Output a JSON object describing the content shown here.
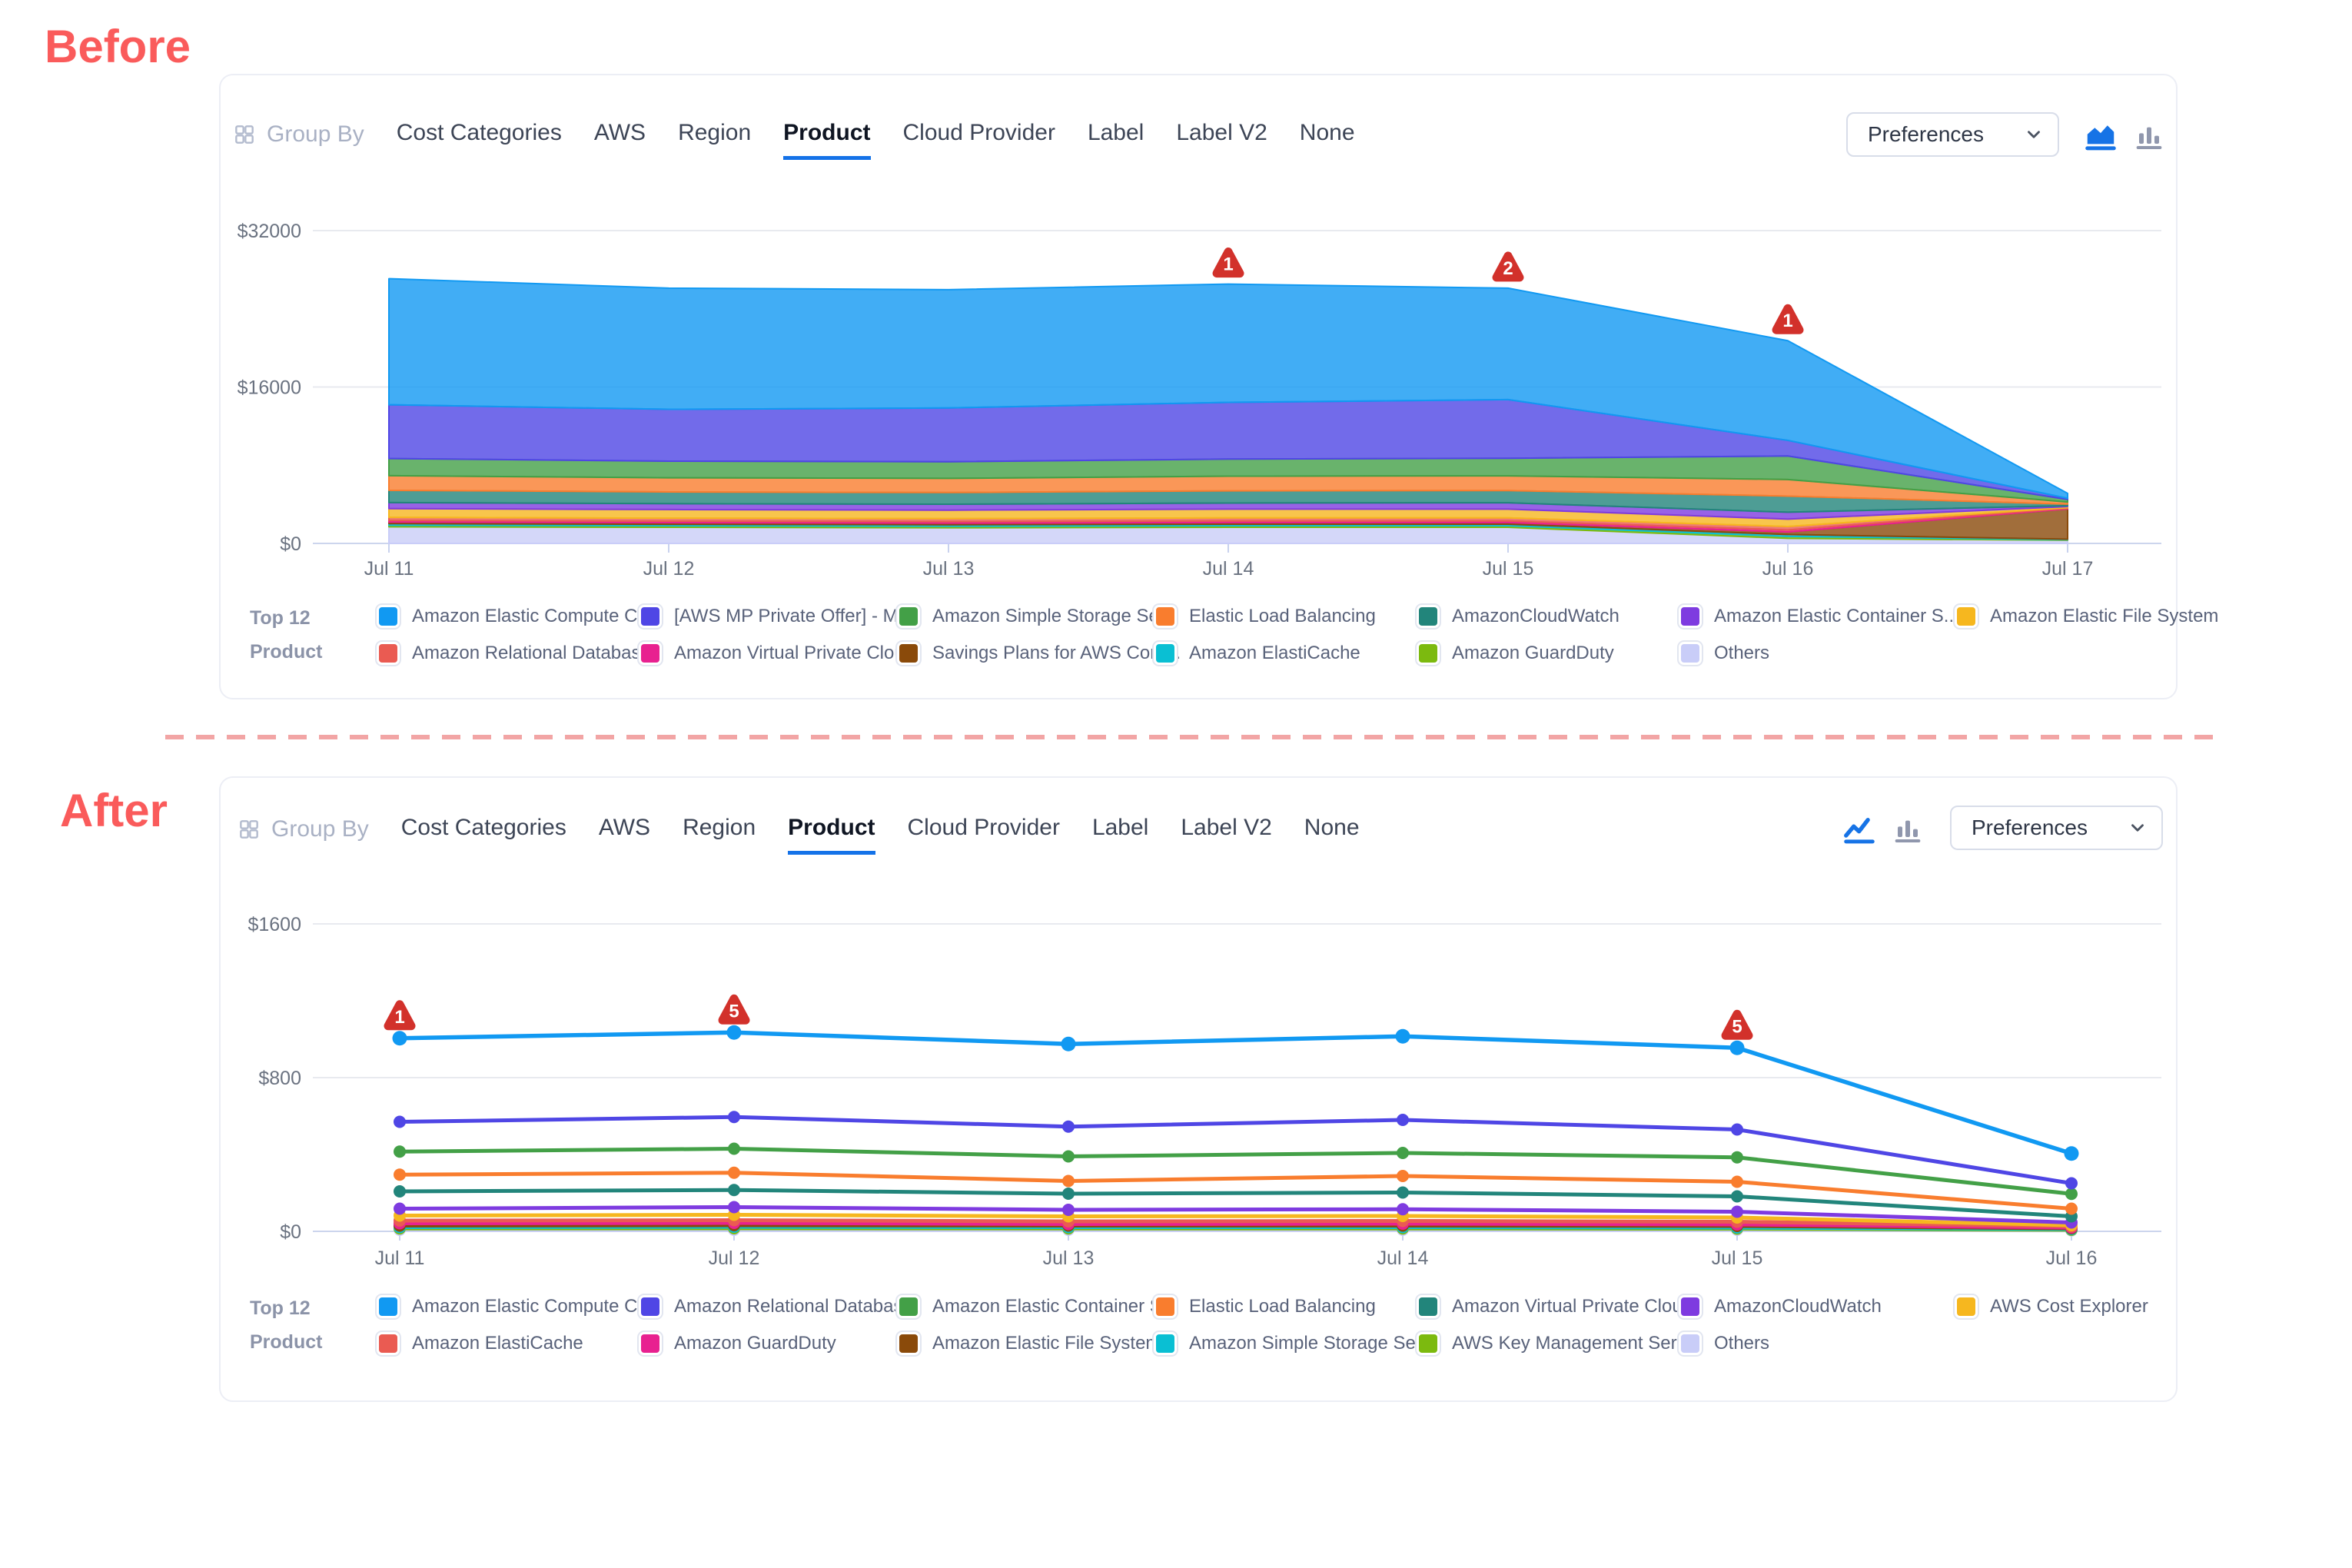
{
  "before_label": "Before",
  "after_label": "After",
  "toolbar": {
    "group_by": "Group By",
    "tabs": [
      "Cost Categories",
      "AWS",
      "Region",
      "Product",
      "Cloud Provider",
      "Label",
      "Label V2",
      "None"
    ],
    "active_tab": "Product",
    "preferences": "Preferences"
  },
  "legend_title_top": "Top 12",
  "legend_title_bottom": "Product",
  "colors": {
    "accent_red": "#FA5B5B",
    "active_tab_underline": "#1472E8",
    "active_icon_blue": "#1673E6",
    "inactive_icon_gray": "#9097AD",
    "annotation_red": "#D2312B"
  },
  "chart_data": [
    {
      "id": "before",
      "type": "area",
      "x": [
        "Jul 11",
        "Jul 12",
        "Jul 13",
        "Jul 14",
        "Jul 15",
        "Jul 16",
        "Jul 17"
      ],
      "ylim": [
        0,
        32000
      ],
      "y_ticks": [
        {
          "value": 0,
          "label": "$0"
        },
        {
          "value": 16000,
          "label": "$16000"
        },
        {
          "value": 32000,
          "label": "$32000"
        }
      ],
      "grid": true,
      "legend_position": "bottom",
      "series": [
        {
          "name": "Amazon Elastic Compute Cl...",
          "color": "#1199F2",
          "values": [
            12900,
            12400,
            12100,
            12100,
            11400,
            10200,
            500
          ]
        },
        {
          "name": "[AWS MP Private Offer] - M...",
          "color": "#4F46E5",
          "values": [
            5500,
            5300,
            5500,
            5800,
            6000,
            1600,
            120
          ]
        },
        {
          "name": "Amazon Simple Storage Ser...",
          "color": "#43A047",
          "values": [
            1750,
            1700,
            1700,
            1750,
            1800,
            2400,
            260
          ]
        },
        {
          "name": "Elastic Load Balancing",
          "color": "#F97D2E",
          "values": [
            1500,
            1450,
            1450,
            1500,
            1500,
            1700,
            220
          ]
        },
        {
          "name": "AmazonCloudWatch",
          "color": "#22857B",
          "values": [
            1250,
            1200,
            1200,
            1250,
            1250,
            1650,
            160
          ]
        },
        {
          "name": "Amazon Elastic Container S...",
          "color": "#7E3BE0",
          "values": [
            620,
            600,
            600,
            620,
            650,
            700,
            90
          ]
        },
        {
          "name": "Amazon Elastic File System",
          "color": "#F6B71F",
          "values": [
            900,
            880,
            870,
            900,
            900,
            760,
            110
          ]
        },
        {
          "name": "Amazon Relational Databas...",
          "color": "#EA5B52",
          "values": [
            310,
            300,
            300,
            310,
            310,
            350,
            70
          ]
        },
        {
          "name": "Amazon Virtual Private Cloud",
          "color": "#E82190",
          "values": [
            170,
            165,
            165,
            170,
            170,
            210,
            60
          ]
        },
        {
          "name": "Savings Plans for AWS Com...",
          "color": "#8A4A0A",
          "values": [
            160,
            160,
            160,
            160,
            160,
            260,
            3100
          ]
        },
        {
          "name": "Amazon ElastiCache",
          "color": "#0ABFD3",
          "values": [
            160,
            155,
            155,
            160,
            160,
            190,
            50
          ]
        },
        {
          "name": "Amazon GuardDuty",
          "color": "#7CBA0F",
          "values": [
            160,
            155,
            155,
            160,
            160,
            200,
            50
          ]
        },
        {
          "name": "Others",
          "color": "#C9CDF8",
          "values": [
            1700,
            1650,
            1600,
            1650,
            1650,
            520,
            330
          ]
        }
      ],
      "annotations": [
        {
          "x": "Jul 14",
          "label": "1"
        },
        {
          "x": "Jul 15",
          "label": "2"
        },
        {
          "x": "Jul 16",
          "label": "1"
        }
      ]
    },
    {
      "id": "after",
      "type": "line",
      "x": [
        "Jul 11",
        "Jul 12",
        "Jul 13",
        "Jul 14",
        "Jul 15",
        "Jul 16"
      ],
      "ylim": [
        0,
        1600
      ],
      "y_ticks": [
        {
          "value": 0,
          "label": "$0"
        },
        {
          "value": 800,
          "label": "$800"
        },
        {
          "value": 1600,
          "label": "$1600"
        }
      ],
      "grid": true,
      "legend_position": "bottom",
      "series": [
        {
          "name": "Amazon Elastic Compute Cl...",
          "color": "#1199F2",
          "values": [
            1005,
            1035,
            975,
            1015,
            955,
            405
          ]
        },
        {
          "name": "Amazon Relational Databas...",
          "color": "#4F46E5",
          "values": [
            570,
            595,
            545,
            580,
            530,
            250
          ]
        },
        {
          "name": "Amazon Elastic Container S...",
          "color": "#43A047",
          "values": [
            415,
            430,
            390,
            408,
            385,
            195
          ]
        },
        {
          "name": "Elastic Load Balancing",
          "color": "#F97D2E",
          "values": [
            295,
            305,
            262,
            288,
            258,
            118
          ]
        },
        {
          "name": "Amazon Virtual Private Cloud",
          "color": "#22857B",
          "values": [
            208,
            215,
            196,
            202,
            182,
            78
          ]
        },
        {
          "name": "AmazonCloudWatch",
          "color": "#7E3BE0",
          "values": [
            118,
            126,
            112,
            115,
            102,
            46
          ]
        },
        {
          "name": "AWS Cost Explorer",
          "color": "#F6B71F",
          "values": [
            82,
            86,
            78,
            80,
            72,
            32
          ]
        },
        {
          "name": "Amazon ElastiCache",
          "color": "#EA5B52",
          "values": [
            56,
            58,
            52,
            54,
            50,
            26
          ]
        },
        {
          "name": "Amazon GuardDuty",
          "color": "#E82190",
          "values": [
            42,
            44,
            38,
            40,
            36,
            20
          ]
        },
        {
          "name": "Amazon Elastic File System",
          "color": "#8A4A0A",
          "values": [
            30,
            32,
            30,
            30,
            28,
            16
          ]
        },
        {
          "name": "Amazon Simple Storage Ser...",
          "color": "#0ABFD3",
          "values": [
            22,
            24,
            22,
            22,
            20,
            12
          ]
        },
        {
          "name": "AWS Key Management Serv...",
          "color": "#7CBA0F",
          "values": [
            15,
            16,
            15,
            15,
            14,
            8
          ]
        },
        {
          "name": "Others",
          "color": "#C9CDF8",
          "values": [
            8,
            8,
            8,
            8,
            8,
            5
          ]
        }
      ],
      "annotations": [
        {
          "x": "Jul 11",
          "label": "1"
        },
        {
          "x": "Jul 12",
          "label": "5"
        },
        {
          "x": "Jul 15",
          "label": "5"
        }
      ]
    }
  ]
}
